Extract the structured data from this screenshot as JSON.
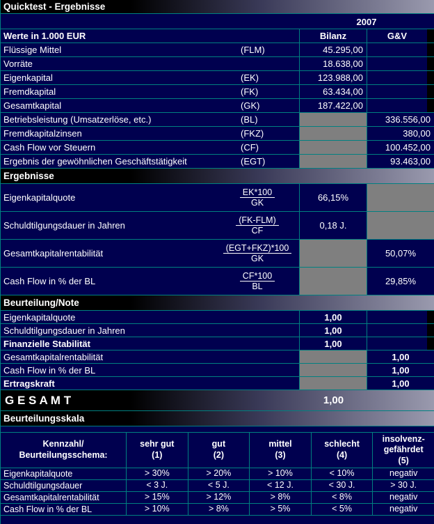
{
  "title": "Quicktest - Ergebnisse",
  "year": "2007",
  "unit_header": {
    "label": "Werte in 1.000 EUR",
    "bilanz": "Bilanz",
    "gv": "G&V"
  },
  "data_rows": [
    {
      "label": "Flüssige Mittel",
      "code": "(FLM)",
      "bilanz": "45.295,00",
      "gv": ""
    },
    {
      "label": "Vorräte",
      "code": "",
      "bilanz": "18.638,00",
      "gv": ""
    },
    {
      "label": "Eigenkapital",
      "code": "(EK)",
      "bilanz": "123.988,00",
      "gv": ""
    },
    {
      "label": "Fremdkapital",
      "code": "(FK)",
      "bilanz": "63.434,00",
      "gv": ""
    },
    {
      "label": "Gesamtkapital",
      "code": "(GK)",
      "bilanz": "187.422,00",
      "gv": ""
    },
    {
      "label": "Betriebsleistung (Umsatzerlöse, etc.)",
      "code": "(BL)",
      "bilanz": "",
      "gv": "336.556,00"
    },
    {
      "label": "Fremdkapitalzinsen",
      "code": "(FKZ)",
      "bilanz": "",
      "gv": "380,00"
    },
    {
      "label": "Cash Flow vor Steuern",
      "code": "(CF)",
      "bilanz": "",
      "gv": "100.452,00"
    },
    {
      "label": "Ergebnis der gewöhnlichen Geschäftstätigkeit",
      "code": "(EGT)",
      "bilanz": "",
      "gv": "93.463,00"
    }
  ],
  "section_ergebnisse": {
    "title": "Ergebnisse",
    "rows": [
      {
        "label": "Eigenkapitalquote",
        "numerator": "EK*100",
        "denominator": "GK",
        "bilanz": "66,15%",
        "gv": ""
      },
      {
        "label": "Schuldtilgungsdauer in Jahren",
        "numerator": "(FK-FLM)",
        "denominator": "CF",
        "bilanz": "0,18 J.",
        "gv": ""
      },
      {
        "label": "Gesamtkapitalrentabilität",
        "numerator": "(EGT+FKZ)*100",
        "denominator": "GK",
        "bilanz": "",
        "gv": "50,07%"
      },
      {
        "label": "Cash Flow in % der BL",
        "numerator": "CF*100",
        "denominator": "BL",
        "bilanz": "",
        "gv": "29,85%"
      }
    ]
  },
  "section_note": {
    "title": "Beurteilung/Note",
    "rows": [
      {
        "label": "Eigenkapitalquote",
        "bilanz": "1,00",
        "gv": ""
      },
      {
        "label": "Schuldtilgungsdauer in Jahren",
        "bilanz": "1,00",
        "gv": ""
      },
      {
        "label": "Finanzielle Stabilität",
        "bilanz": "1,00",
        "gv": ""
      },
      {
        "label": "Gesamtkapitalrentabilität",
        "bilanz": "",
        "gv": "1,00"
      },
      {
        "label": "Cash Flow in % der BL",
        "bilanz": "",
        "gv": "1,00"
      },
      {
        "label": "Ertragskraft",
        "bilanz": "",
        "gv": "1,00"
      }
    ]
  },
  "gesamt": {
    "label": "G E S A M T",
    "value": "1,00"
  },
  "scale": {
    "title": "Beurteilungsskala",
    "corner": "Kennzahl/\nBeurteilungsschema:",
    "headers": [
      "sehr gut\n(1)",
      "gut\n(2)",
      "mittel\n(3)",
      "schlecht\n(4)",
      "insolvenz-\ngefährdet\n(5)"
    ],
    "rows": [
      {
        "cells": [
          "Eigenkapitalquote",
          "> 30%",
          "> 20%",
          "> 10%",
          "< 10%",
          "negativ"
        ]
      },
      {
        "cells": [
          "Schuldtilgungsdauer",
          "< 3 J.",
          "< 5 J.",
          "< 12 J.",
          "< 30 J.",
          "> 30 J."
        ]
      },
      {
        "cells": [
          "Gesamtkapitalrentabilität",
          "> 15%",
          "> 12%",
          "> 8%",
          "< 8%",
          "negativ"
        ]
      },
      {
        "cells": [
          "Cash Flow in % der BL",
          "> 10%",
          "> 8%",
          "> 5%",
          "< 5%",
          "negativ"
        ]
      }
    ]
  },
  "colors": {
    "background": "#00004f",
    "grid": "#008080",
    "muted_cell": "#7f7f7f",
    "header_gradient_end": "#9a9aae"
  }
}
